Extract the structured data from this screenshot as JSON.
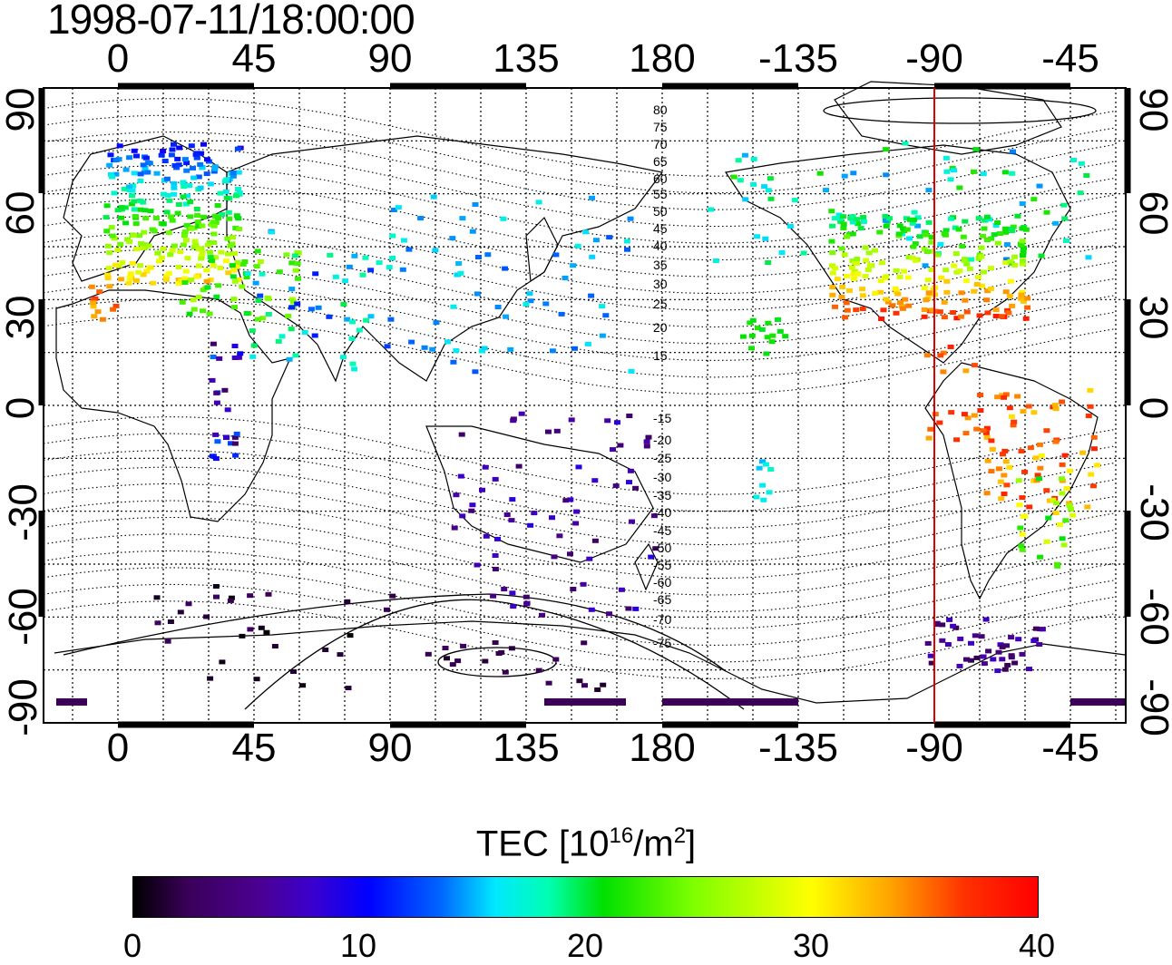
{
  "title": "1998-07-11/18:00:00",
  "top_lon_labels": [
    "0",
    "45",
    "90",
    "135",
    "180",
    "-135",
    "-90",
    "-45"
  ],
  "bottom_lon_labels": [
    "0",
    "45",
    "90",
    "135",
    "180",
    "-135",
    "-90",
    "-45"
  ],
  "left_lat_labels": [
    "90",
    "60",
    "30",
    "0",
    "-30",
    "-60",
    "-90"
  ],
  "right_lat_labels": [
    "90",
    "60",
    "30",
    "0",
    "-30",
    "-60",
    "-90"
  ],
  "contour_labels_north": [
    "80",
    "75",
    "70",
    "65",
    "60",
    "55",
    "50",
    "45",
    "40",
    "35",
    "30",
    "25",
    "20",
    "15"
  ],
  "contour_labels_south": [
    "-15",
    "-20",
    "-25",
    "-30",
    "-35",
    "-40",
    "-45",
    "-50",
    "-55",
    "-60",
    "-65",
    "-70",
    "-75"
  ],
  "colorbar": {
    "title_main": "TEC  [10",
    "title_exp": "16",
    "title_unit": "/m",
    "title_exp2": "2",
    "title_end": "]",
    "ticks": [
      "0",
      "10",
      "20",
      "30",
      "40"
    ],
    "min": 0,
    "max": 40
  },
  "meridian_marker": {
    "lon": -90,
    "color": "#e00000"
  },
  "colors": {
    "land_outline": "#000000",
    "grid": "#000000"
  }
}
